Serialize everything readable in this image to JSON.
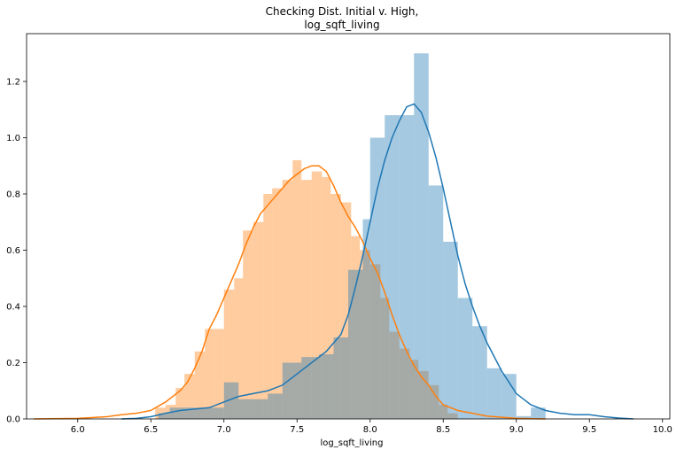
{
  "chart_data": {
    "type": "histogram",
    "title": "Checking Dist. Initial v. High,",
    "subtitle": "log_sqft_living",
    "xlabel": "log_sqft_living",
    "ylabel": "",
    "xlim": [
      5.65,
      10.05
    ],
    "ylim": [
      0,
      1.37
    ],
    "x_ticks": [
      "6.0",
      "6.5",
      "7.0",
      "7.5",
      "8.0",
      "8.5",
      "9.0",
      "9.5",
      "10.0"
    ],
    "y_ticks": [
      "0.0",
      "0.2",
      "0.4",
      "0.6",
      "0.8",
      "1.0",
      "1.2"
    ],
    "grid": false,
    "legend": "none",
    "series": [
      {
        "color": "#ff7f0e",
        "kind": "histogram+kde",
        "bins": [
          {
            "x0": 6.53,
            "x1": 6.6,
            "y": 0.04
          },
          {
            "x0": 6.6,
            "x1": 6.67,
            "y": 0.05
          },
          {
            "x0": 6.67,
            "x1": 6.73,
            "y": 0.11
          },
          {
            "x0": 6.73,
            "x1": 6.8,
            "y": 0.16
          },
          {
            "x0": 6.8,
            "x1": 6.87,
            "y": 0.24
          },
          {
            "x0": 6.87,
            "x1": 6.93,
            "y": 0.32
          },
          {
            "x0": 6.93,
            "x1": 7.0,
            "y": 0.32
          },
          {
            "x0": 7.0,
            "x1": 7.07,
            "y": 0.46
          },
          {
            "x0": 7.07,
            "x1": 7.13,
            "y": 0.5
          },
          {
            "x0": 7.13,
            "x1": 7.2,
            "y": 0.67
          },
          {
            "x0": 7.2,
            "x1": 7.27,
            "y": 0.7
          },
          {
            "x0": 7.27,
            "x1": 7.33,
            "y": 0.8
          },
          {
            "x0": 7.33,
            "x1": 7.4,
            "y": 0.82
          },
          {
            "x0": 7.4,
            "x1": 7.47,
            "y": 0.85
          },
          {
            "x0": 7.47,
            "x1": 7.53,
            "y": 0.92
          },
          {
            "x0": 7.53,
            "x1": 7.6,
            "y": 0.85
          },
          {
            "x0": 7.6,
            "x1": 7.67,
            "y": 0.88
          },
          {
            "x0": 7.67,
            "x1": 7.73,
            "y": 0.86
          },
          {
            "x0": 7.73,
            "x1": 7.8,
            "y": 0.8
          },
          {
            "x0": 7.8,
            "x1": 7.87,
            "y": 0.77
          },
          {
            "x0": 7.87,
            "x1": 7.93,
            "y": 0.65
          },
          {
            "x0": 7.93,
            "x1": 8.0,
            "y": 0.6
          },
          {
            "x0": 8.0,
            "x1": 8.07,
            "y": 0.55
          },
          {
            "x0": 8.07,
            "x1": 8.13,
            "y": 0.43
          },
          {
            "x0": 8.13,
            "x1": 8.2,
            "y": 0.31
          },
          {
            "x0": 8.2,
            "x1": 8.27,
            "y": 0.25
          },
          {
            "x0": 8.27,
            "x1": 8.33,
            "y": 0.21
          },
          {
            "x0": 8.33,
            "x1": 8.4,
            "y": 0.17
          },
          {
            "x0": 8.4,
            "x1": 8.47,
            "y": 0.12
          },
          {
            "x0": 8.47,
            "x1": 8.53,
            "y": 0.05
          },
          {
            "x0": 8.53,
            "x1": 8.6,
            "y": 0.02
          }
        ],
        "kde": [
          [
            5.7,
            0.0
          ],
          [
            6.0,
            0.002
          ],
          [
            6.2,
            0.008
          ],
          [
            6.3,
            0.015
          ],
          [
            6.4,
            0.02
          ],
          [
            6.5,
            0.03
          ],
          [
            6.55,
            0.045
          ],
          [
            6.6,
            0.06
          ],
          [
            6.65,
            0.08
          ],
          [
            6.7,
            0.1
          ],
          [
            6.75,
            0.13
          ],
          [
            6.8,
            0.18
          ],
          [
            6.85,
            0.24
          ],
          [
            6.9,
            0.32
          ],
          [
            6.95,
            0.37
          ],
          [
            7.0,
            0.43
          ],
          [
            7.05,
            0.49
          ],
          [
            7.1,
            0.55
          ],
          [
            7.15,
            0.62
          ],
          [
            7.2,
            0.68
          ],
          [
            7.25,
            0.73
          ],
          [
            7.3,
            0.76
          ],
          [
            7.35,
            0.79
          ],
          [
            7.4,
            0.82
          ],
          [
            7.45,
            0.85
          ],
          [
            7.5,
            0.87
          ],
          [
            7.55,
            0.89
          ],
          [
            7.6,
            0.9
          ],
          [
            7.65,
            0.9
          ],
          [
            7.7,
            0.88
          ],
          [
            7.75,
            0.83
          ],
          [
            7.8,
            0.77
          ],
          [
            7.85,
            0.72
          ],
          [
            7.9,
            0.68
          ],
          [
            7.95,
            0.63
          ],
          [
            8.0,
            0.57
          ],
          [
            8.05,
            0.52
          ],
          [
            8.1,
            0.45
          ],
          [
            8.15,
            0.37
          ],
          [
            8.2,
            0.3
          ],
          [
            8.25,
            0.24
          ],
          [
            8.3,
            0.19
          ],
          [
            8.35,
            0.15
          ],
          [
            8.4,
            0.12
          ],
          [
            8.45,
            0.08
          ],
          [
            8.5,
            0.05
          ],
          [
            8.6,
            0.03
          ],
          [
            8.7,
            0.02
          ],
          [
            8.8,
            0.01
          ],
          [
            9.0,
            0.002
          ],
          [
            9.2,
            0.0
          ]
        ]
      },
      {
        "color": "#1f77b4",
        "kind": "histogram+kde",
        "bins": [
          {
            "x0": 6.55,
            "x1": 6.63,
            "y": 0.02
          },
          {
            "x0": 6.63,
            "x1": 6.75,
            "y": 0.04
          },
          {
            "x0": 6.75,
            "x1": 6.88,
            "y": 0.04
          },
          {
            "x0": 6.88,
            "x1": 7.0,
            "y": 0.04
          },
          {
            "x0": 7.0,
            "x1": 7.1,
            "y": 0.13
          },
          {
            "x0": 7.1,
            "x1": 7.2,
            "y": 0.07
          },
          {
            "x0": 7.2,
            "x1": 7.3,
            "y": 0.07
          },
          {
            "x0": 7.3,
            "x1": 7.4,
            "y": 0.09
          },
          {
            "x0": 7.4,
            "x1": 7.53,
            "y": 0.2
          },
          {
            "x0": 7.53,
            "x1": 7.65,
            "y": 0.22
          },
          {
            "x0": 7.65,
            "x1": 7.75,
            "y": 0.23
          },
          {
            "x0": 7.75,
            "x1": 7.85,
            "y": 0.29
          },
          {
            "x0": 7.85,
            "x1": 7.95,
            "y": 0.53
          },
          {
            "x0": 7.95,
            "x1": 8.0,
            "y": 0.71
          },
          {
            "x0": 8.0,
            "x1": 8.1,
            "y": 1.0
          },
          {
            "x0": 8.1,
            "x1": 8.2,
            "y": 1.08
          },
          {
            "x0": 8.2,
            "x1": 8.3,
            "y": 1.08
          },
          {
            "x0": 8.3,
            "x1": 8.4,
            "y": 1.3
          },
          {
            "x0": 8.4,
            "x1": 8.5,
            "y": 0.83
          },
          {
            "x0": 8.5,
            "x1": 8.6,
            "y": 0.63
          },
          {
            "x0": 8.6,
            "x1": 8.7,
            "y": 0.43
          },
          {
            "x0": 8.7,
            "x1": 8.8,
            "y": 0.33
          },
          {
            "x0": 8.8,
            "x1": 8.9,
            "y": 0.18
          },
          {
            "x0": 8.9,
            "x1": 9.0,
            "y": 0.16
          },
          {
            "x0": 9.0,
            "x1": 9.1,
            "y": 0.01
          },
          {
            "x0": 9.1,
            "x1": 9.2,
            "y": 0.04
          }
        ],
        "kde": [
          [
            6.3,
            0.0
          ],
          [
            6.4,
            0.002
          ],
          [
            6.5,
            0.008
          ],
          [
            6.6,
            0.02
          ],
          [
            6.7,
            0.03
          ],
          [
            6.8,
            0.035
          ],
          [
            6.9,
            0.04
          ],
          [
            7.0,
            0.06
          ],
          [
            7.1,
            0.08
          ],
          [
            7.2,
            0.09
          ],
          [
            7.3,
            0.1
          ],
          [
            7.4,
            0.12
          ],
          [
            7.5,
            0.16
          ],
          [
            7.6,
            0.2
          ],
          [
            7.7,
            0.24
          ],
          [
            7.8,
            0.3
          ],
          [
            7.85,
            0.37
          ],
          [
            7.9,
            0.47
          ],
          [
            7.95,
            0.58
          ],
          [
            8.0,
            0.7
          ],
          [
            8.05,
            0.82
          ],
          [
            8.1,
            0.92
          ],
          [
            8.15,
            1.0
          ],
          [
            8.2,
            1.06
          ],
          [
            8.25,
            1.11
          ],
          [
            8.3,
            1.12
          ],
          [
            8.35,
            1.09
          ],
          [
            8.4,
            1.02
          ],
          [
            8.45,
            0.93
          ],
          [
            8.5,
            0.82
          ],
          [
            8.55,
            0.7
          ],
          [
            8.6,
            0.58
          ],
          [
            8.65,
            0.48
          ],
          [
            8.7,
            0.4
          ],
          [
            8.75,
            0.33
          ],
          [
            8.8,
            0.27
          ],
          [
            8.85,
            0.22
          ],
          [
            8.9,
            0.17
          ],
          [
            8.95,
            0.13
          ],
          [
            9.0,
            0.09
          ],
          [
            9.1,
            0.05
          ],
          [
            9.2,
            0.03
          ],
          [
            9.3,
            0.02
          ],
          [
            9.4,
            0.015
          ],
          [
            9.5,
            0.015
          ],
          [
            9.6,
            0.008
          ],
          [
            9.7,
            0.003
          ],
          [
            9.8,
            0.0
          ]
        ]
      }
    ]
  }
}
